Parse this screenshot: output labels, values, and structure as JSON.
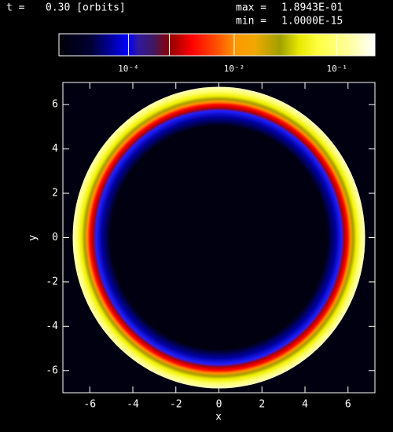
{
  "header": {
    "time_label": "t =",
    "time": "0.30 [orbits]",
    "max_label": "max =",
    "max": {
      "value": 0.18943,
      "label": "1.8943E-01"
    },
    "min_label": "min =",
    "min": {
      "value": 1e-15,
      "label": "1.0000E-15"
    }
  },
  "colorbar": {
    "stretch_power": 0.2,
    "ticks": [
      {
        "value": 0.0001,
        "label": "10⁻⁴"
      },
      {
        "value": 0.01,
        "label": "10⁻²"
      },
      {
        "value": 0.1,
        "label": "10⁻¹"
      }
    ],
    "unlabeled_ticks": [
      0.001
    ]
  },
  "chart_data": {
    "type": "image",
    "xlabel": "x",
    "ylabel": "y",
    "xlim": [
      -7.25,
      7.25
    ],
    "ylim": [
      -7,
      7
    ],
    "xticks": [
      -6,
      -4,
      -2,
      0,
      2,
      4,
      6
    ],
    "yticks": [
      -6,
      -4,
      -2,
      0,
      2,
      4,
      6
    ]
  }
}
